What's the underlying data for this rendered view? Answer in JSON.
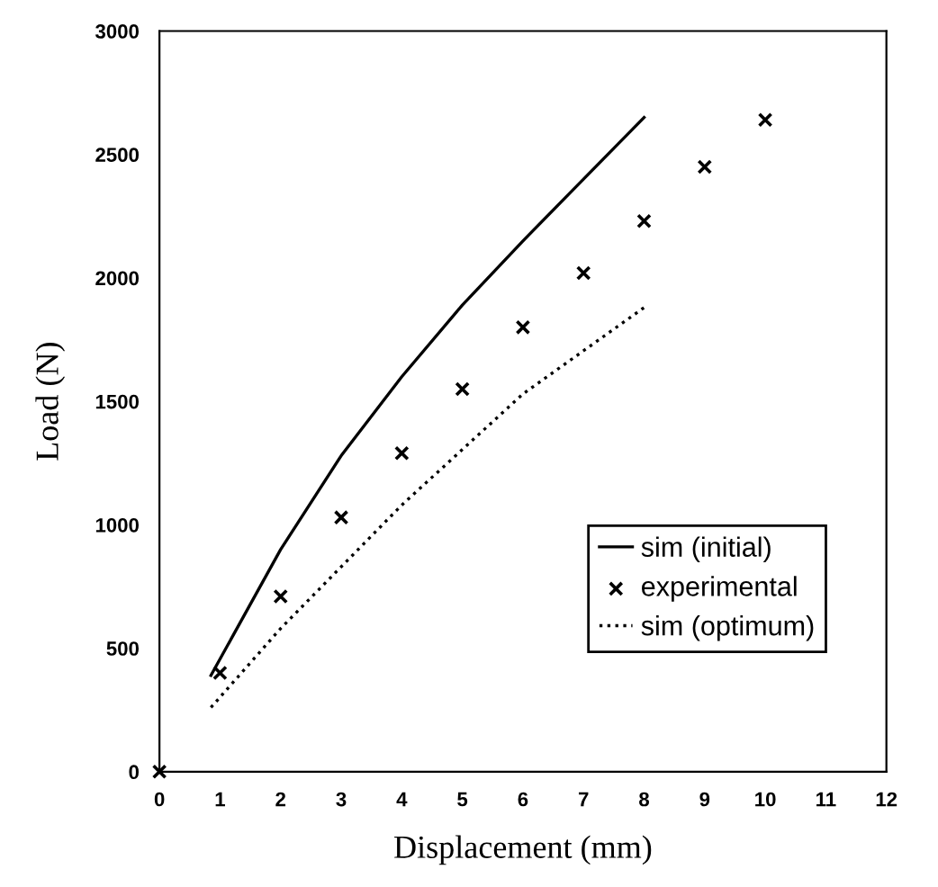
{
  "chart_data": {
    "type": "line",
    "xlabel": "Displacement (mm)",
    "ylabel": "Load (N)",
    "xlim": [
      0,
      12
    ],
    "ylim": [
      0,
      3000
    ],
    "xticks": [
      0,
      1,
      2,
      3,
      4,
      5,
      6,
      7,
      8,
      9,
      10,
      11,
      12
    ],
    "yticks": [
      0,
      500,
      1000,
      1500,
      2000,
      2500,
      3000
    ],
    "grid": false,
    "legend": "bottom right",
    "series": [
      {
        "name": "sim (initial)",
        "line_style": "solid",
        "color": "#000000",
        "x": [
          0.85,
          2,
          3,
          4,
          5,
          6,
          7,
          8
        ],
        "values": [
          390,
          900,
          1280,
          1600,
          1890,
          2150,
          2400,
          2650
        ]
      },
      {
        "name": "experimental",
        "type": "scatter",
        "marker": "cross",
        "color": "#000000",
        "x": [
          0,
          1,
          2,
          3,
          4,
          5,
          6,
          7,
          8,
          9,
          10
        ],
        "values": [
          0,
          400,
          710,
          1030,
          1290,
          1550,
          1800,
          2020,
          2230,
          2450,
          2640
        ]
      },
      {
        "name": "sim (optimum)",
        "line_style": "dotted",
        "color": "#000000",
        "x": [
          0.85,
          2,
          4,
          6,
          8
        ],
        "values": [
          260,
          580,
          1080,
          1530,
          1880
        ]
      }
    ]
  }
}
